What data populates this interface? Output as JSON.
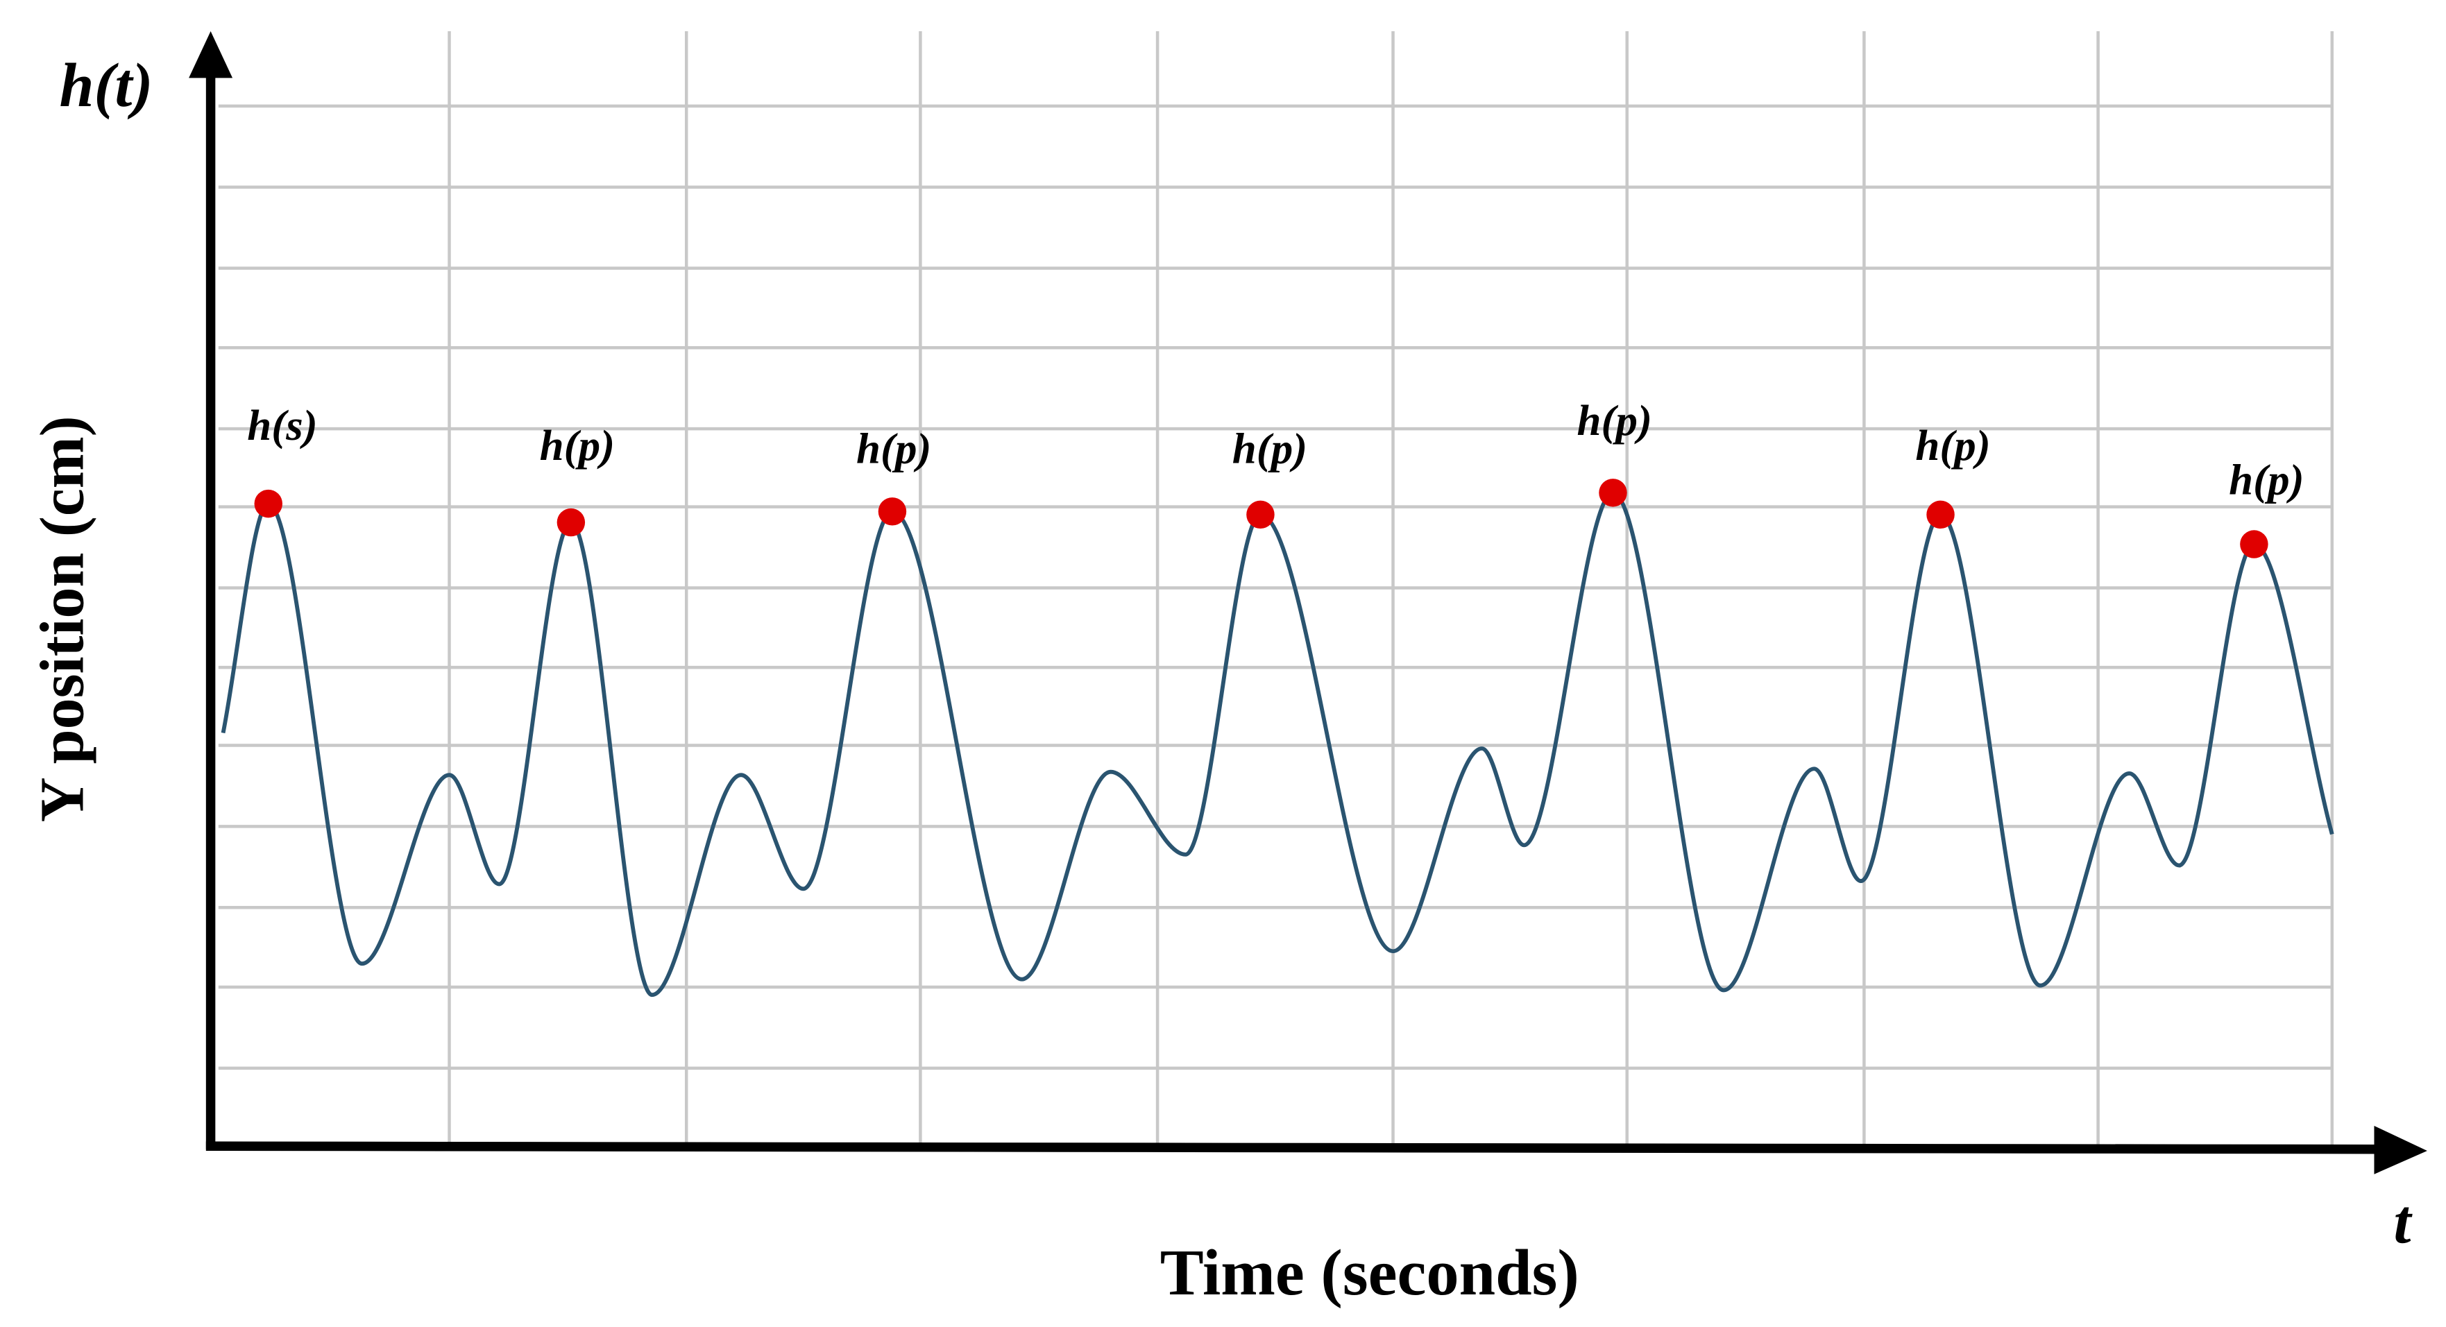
{
  "axis_labels": {
    "y_symbol": "h(t)",
    "x_symbol": "t",
    "y_title": "Y position (cm)",
    "x_title": "Time (seconds)"
  },
  "peaks": [
    {
      "label": "h(s)"
    },
    {
      "label": "h(p)"
    },
    {
      "label": "h(p)"
    },
    {
      "label": "h(p)"
    },
    {
      "label": "h(p)"
    },
    {
      "label": "h(p)"
    },
    {
      "label": "h(p)"
    }
  ]
}
